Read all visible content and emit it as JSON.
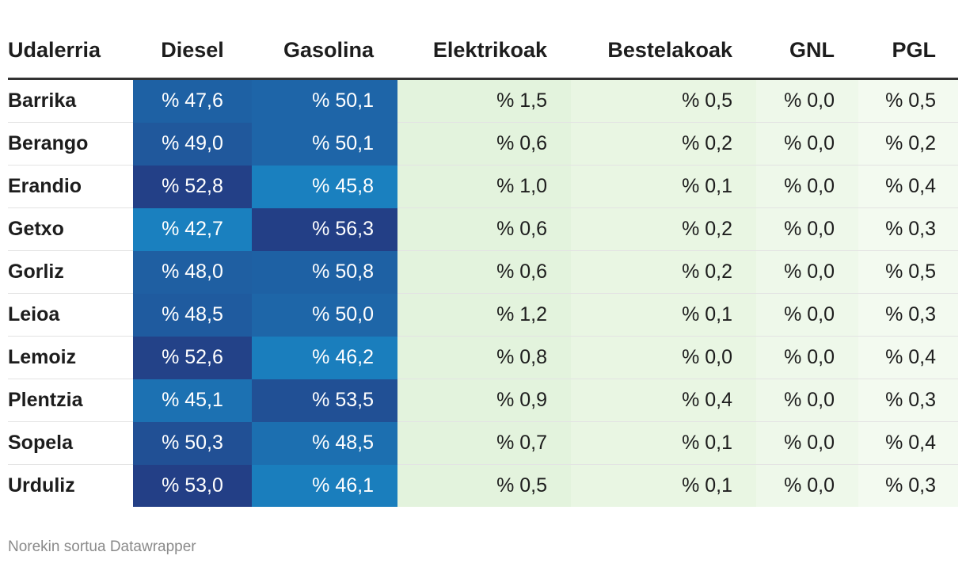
{
  "chart_data": {
    "type": "table",
    "columns": [
      "Udalerria",
      "Diesel",
      "Gasolina",
      "Elektrikoak",
      "Bestelakoak",
      "GNL",
      "PGL"
    ],
    "rows": [
      {
        "name": "Barrika",
        "values": [
          "% 47,6",
          "% 50,1",
          "% 1,5",
          "% 0,5",
          "% 0,0",
          "% 0,5"
        ]
      },
      {
        "name": "Berango",
        "values": [
          "% 49,0",
          "% 50,1",
          "% 0,6",
          "% 0,2",
          "% 0,0",
          "% 0,2"
        ]
      },
      {
        "name": "Erandio",
        "values": [
          "% 52,8",
          "% 45,8",
          "% 1,0",
          "% 0,1",
          "% 0,0",
          "% 0,4"
        ]
      },
      {
        "name": "Getxo",
        "values": [
          "% 42,7",
          "% 56,3",
          "% 0,6",
          "% 0,2",
          "% 0,0",
          "% 0,3"
        ]
      },
      {
        "name": "Gorliz",
        "values": [
          "% 48,0",
          "% 50,8",
          "% 0,6",
          "% 0,2",
          "% 0,0",
          "% 0,5"
        ]
      },
      {
        "name": "Leioa",
        "values": [
          "% 48,5",
          "% 50,0",
          "% 1,2",
          "% 0,1",
          "% 0,0",
          "% 0,3"
        ]
      },
      {
        "name": "Lemoiz",
        "values": [
          "% 52,6",
          "% 46,2",
          "% 0,8",
          "% 0,0",
          "% 0,0",
          "% 0,4"
        ]
      },
      {
        "name": "Plentzia",
        "values": [
          "% 45,1",
          "% 53,5",
          "% 0,9",
          "% 0,4",
          "% 0,0",
          "% 0,3"
        ]
      },
      {
        "name": "Sopela",
        "values": [
          "% 50,3",
          "% 48,5",
          "% 0,7",
          "% 0,1",
          "% 0,0",
          "% 0,4"
        ]
      },
      {
        "name": "Urduliz",
        "values": [
          "% 53,0",
          "% 46,1",
          "% 0,5",
          "% 0,1",
          "% 0,0",
          "% 0,3"
        ]
      }
    ],
    "heatmap_colors": {
      "high_blue": "#224d94",
      "mid_blue": "#1663a8",
      "low_blue": "#1a78b8",
      "light_green_1": "#e3f3dd",
      "light_green_2": "#e9f6e3",
      "light_green_3": "#eef8ea",
      "light_green_4": "#f3faf0"
    }
  },
  "footer": {
    "credit": "Norekin sortua Datawrapper"
  }
}
